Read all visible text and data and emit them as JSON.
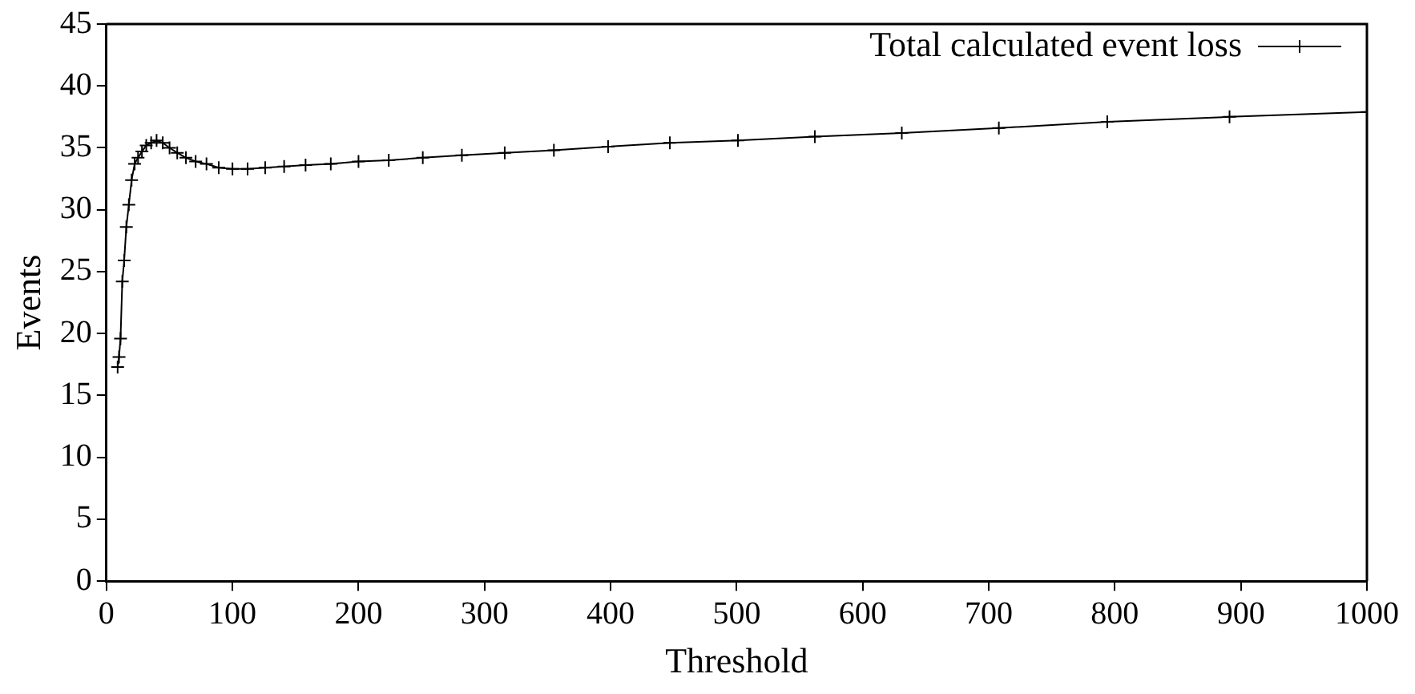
{
  "chart_data": {
    "type": "line",
    "xlabel": "Threshold",
    "ylabel": "Events",
    "xlim": [
      0,
      1000
    ],
    "xticks": [
      0,
      100,
      200,
      300,
      400,
      500,
      600,
      700,
      800,
      900,
      1000
    ],
    "ylim": [
      0,
      45
    ],
    "yticks": [
      0,
      5,
      10,
      15,
      20,
      25,
      30,
      35,
      40,
      45
    ],
    "grid": false,
    "legend": "top right",
    "marker": "cross",
    "line_style": "solid",
    "series": [
      {
        "name": "Total calculated event loss",
        "color": "#000000",
        "x": [
          8.9,
          10,
          11.2,
          12.6,
          14.1,
          15.8,
          17.8,
          20,
          22.4,
          25.1,
          28.2,
          31.6,
          35.5,
          39.8,
          44.7,
          50.1,
          56.2,
          63.1,
          70.8,
          79.4,
          89.1,
          100,
          112,
          126,
          141,
          158,
          178,
          200,
          224,
          251,
          282,
          316,
          355,
          398,
          447,
          501,
          562,
          631,
          708,
          794,
          891,
          1000
        ],
        "values": [
          17.3,
          18.1,
          19.6,
          24.2,
          25.9,
          28.6,
          30.4,
          32.4,
          33.7,
          34.2,
          34.7,
          35.2,
          35.4,
          35.6,
          35.4,
          35.0,
          34.6,
          34.2,
          33.9,
          33.7,
          33.4,
          33.3,
          33.3,
          33.4,
          33.5,
          33.6,
          33.7,
          33.9,
          34.0,
          34.2,
          34.4,
          34.6,
          34.8,
          35.1,
          35.4,
          35.6,
          35.9,
          36.2,
          36.6,
          37.1,
          37.5,
          37.9
        ]
      }
    ]
  }
}
